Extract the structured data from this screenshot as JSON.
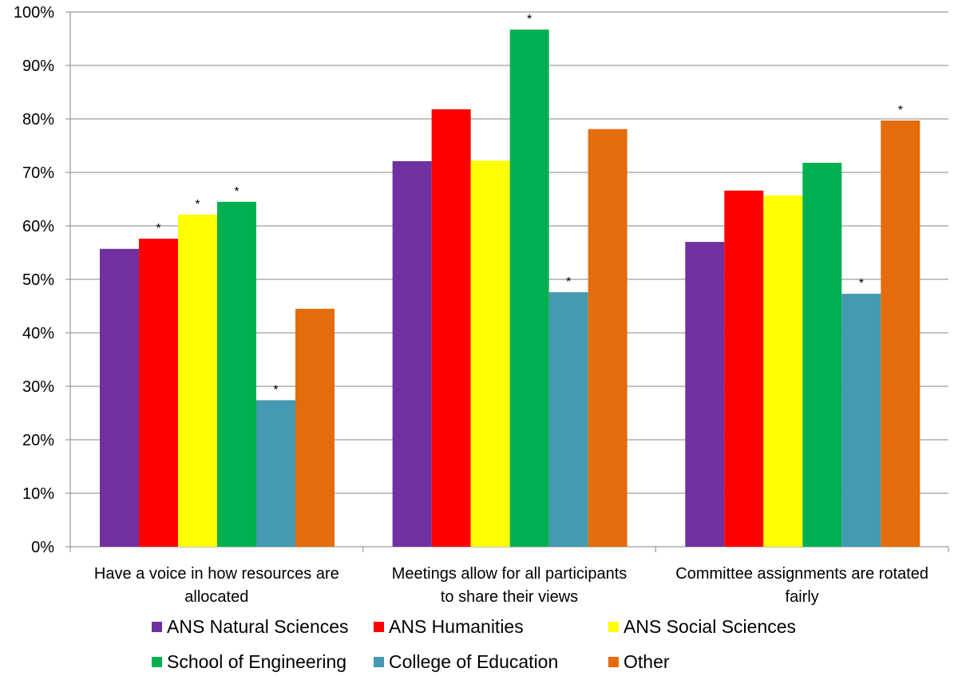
{
  "chart_data": {
    "type": "bar",
    "categories": [
      [
        "Have a voice in how resources are",
        "allocated"
      ],
      [
        "Meetings allow for all participants",
        "to share their views"
      ],
      [
        "Committee assignments are rotated",
        "fairly"
      ]
    ],
    "ylim": [
      0,
      100
    ],
    "yticks": [
      0,
      10,
      20,
      30,
      40,
      50,
      60,
      70,
      80,
      90,
      100
    ],
    "ytick_suffix": "%",
    "grid": true,
    "legend_position": "bottom",
    "annotation_marker": "*",
    "series": [
      {
        "name": "ANS Natural Sciences",
        "color": "#7030A0",
        "values": [
          55.7,
          72.1,
          57.0
        ],
        "marked": [
          false,
          false,
          false
        ]
      },
      {
        "name": "ANS Humanities",
        "color": "#FF0000",
        "values": [
          57.6,
          81.8,
          66.6
        ],
        "marked": [
          true,
          false,
          false
        ]
      },
      {
        "name": "ANS Social Sciences",
        "color": "#FFFF00",
        "values": [
          62.1,
          72.2,
          65.7
        ],
        "marked": [
          true,
          false,
          false
        ]
      },
      {
        "name": "School of Engineering",
        "color": "#00B050",
        "values": [
          64.5,
          96.7,
          71.8
        ],
        "marked": [
          true,
          true,
          false
        ]
      },
      {
        "name": "College of Education",
        "color": "#4599B0",
        "values": [
          27.4,
          47.6,
          47.3
        ],
        "marked": [
          true,
          true,
          true
        ]
      },
      {
        "name": "Other",
        "color": "#E46C0A",
        "values": [
          44.5,
          78.1,
          79.7
        ],
        "marked": [
          false,
          false,
          true
        ]
      }
    ]
  }
}
